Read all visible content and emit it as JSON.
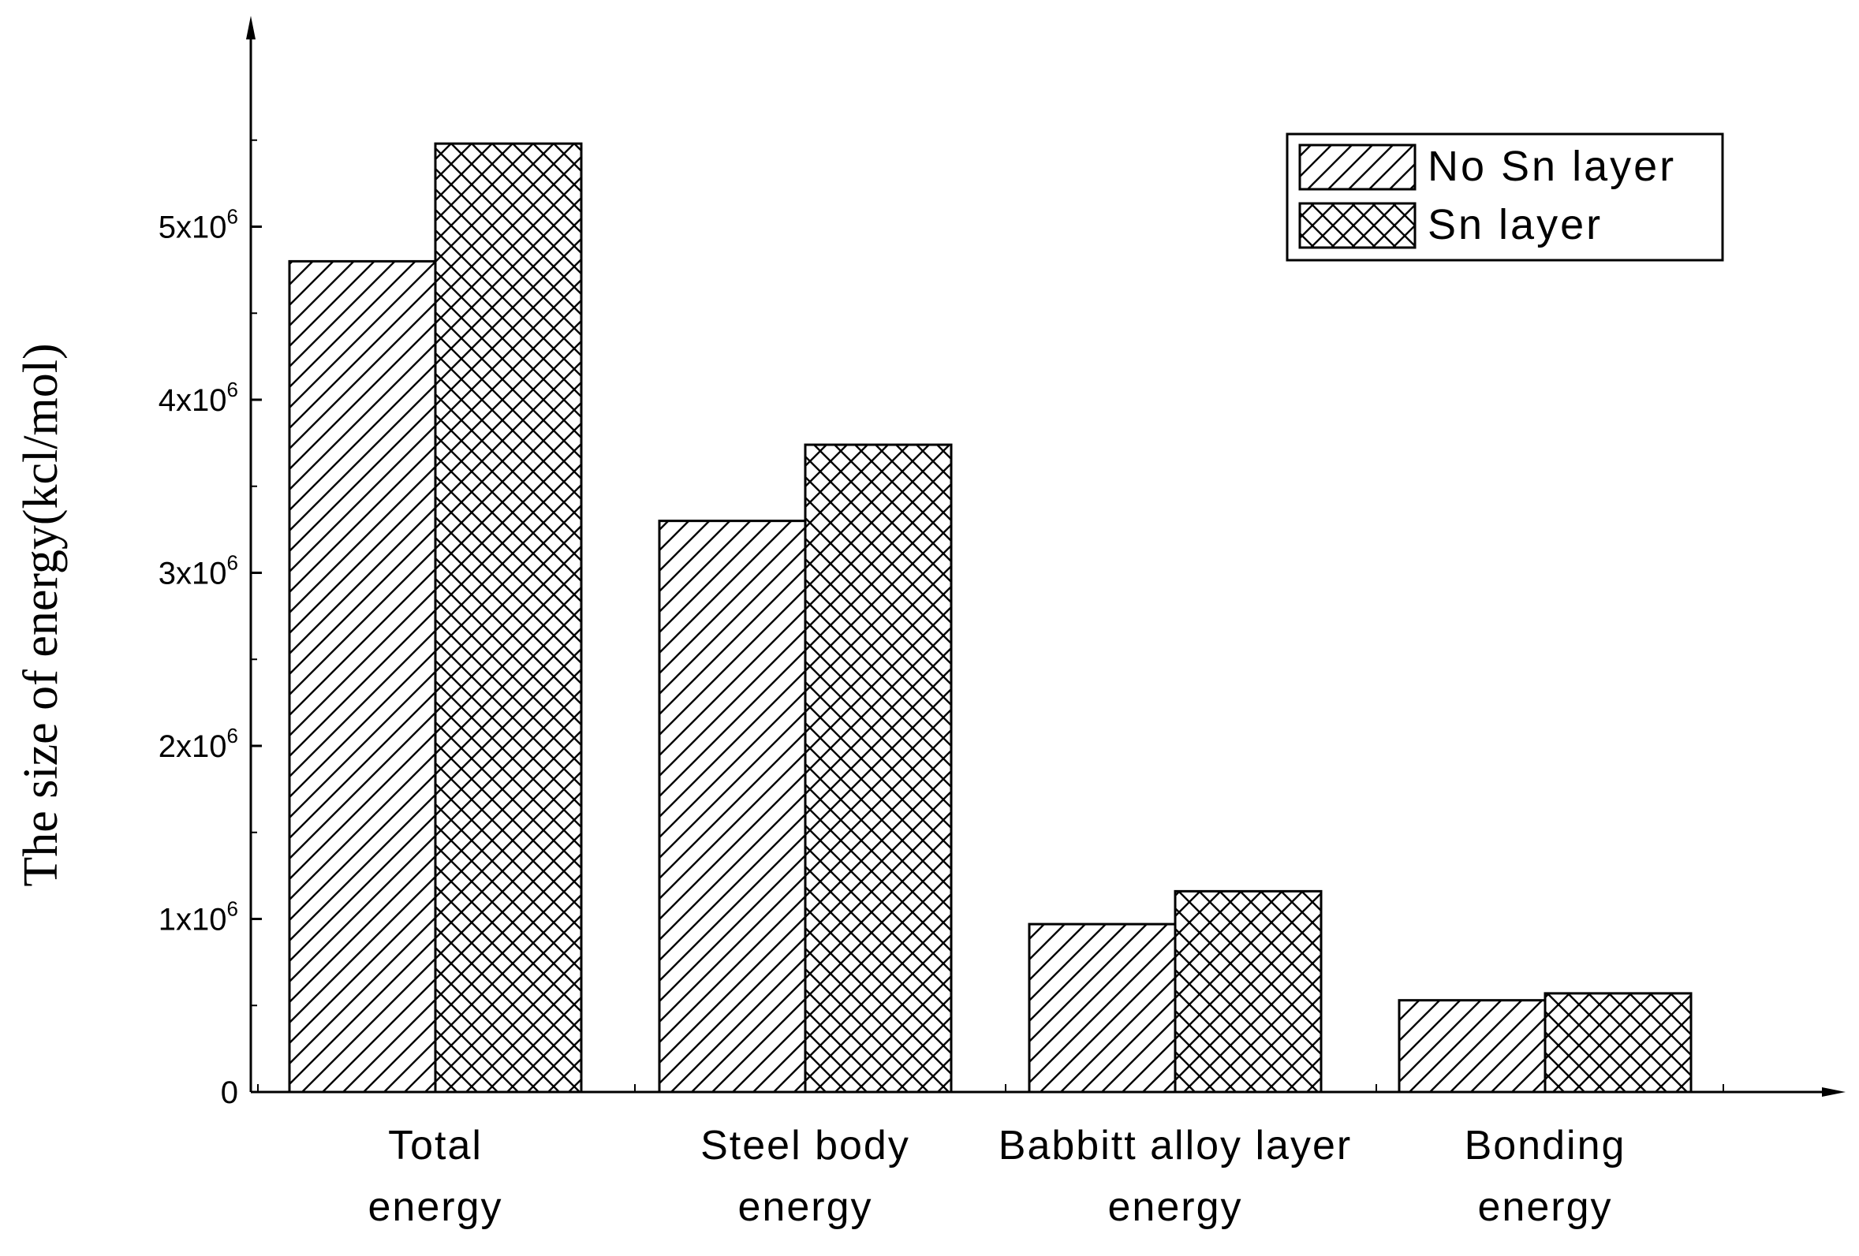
{
  "chart_data": {
    "type": "bar",
    "categories": [
      [
        "Total",
        "energy"
      ],
      [
        "Steel body",
        "energy"
      ],
      [
        "Babbitt alloy layer",
        "energy"
      ],
      [
        "Bonding",
        "energy"
      ]
    ],
    "series": [
      {
        "name": "No Sn layer",
        "values": [
          4800000,
          3300000,
          970000,
          530000
        ],
        "pattern": "diagonal"
      },
      {
        "name": "Sn layer",
        "values": [
          5480000,
          3740000,
          1160000,
          570000
        ],
        "pattern": "crosshatch"
      }
    ],
    "ylabel": "The size of energy(kcl/mol)",
    "ylim": [
      0,
      6000000
    ],
    "yticks": [
      {
        "value": 0,
        "mantissa": "0",
        "exp": ""
      },
      {
        "value": 1000000,
        "mantissa": "1x10",
        "exp": "6"
      },
      {
        "value": 2000000,
        "mantissa": "2x10",
        "exp": "6"
      },
      {
        "value": 3000000,
        "mantissa": "3x10",
        "exp": "6"
      },
      {
        "value": 4000000,
        "mantissa": "4x10",
        "exp": "6"
      },
      {
        "value": 5000000,
        "mantissa": "5x10",
        "exp": "6"
      }
    ],
    "legend_position": "top-right",
    "colors": {
      "line": "#000000",
      "tick_label": "#000000",
      "background": "#ffffff"
    }
  }
}
